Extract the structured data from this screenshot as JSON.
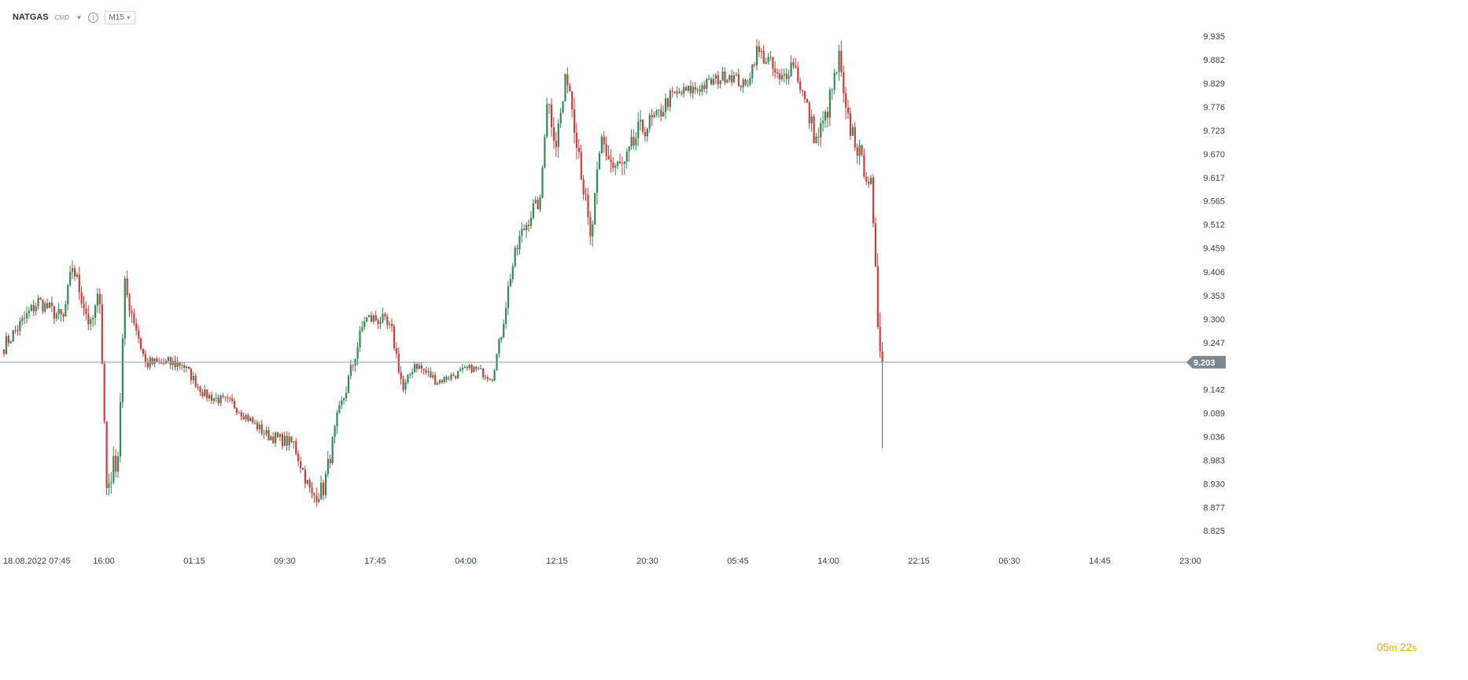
{
  "toolbar": {
    "symbol": "NATGAS",
    "type_tag": "CMD",
    "timeframe": "M15"
  },
  "countdown": {
    "minutes": "05",
    "min_unit": "m",
    "seconds": "22",
    "sec_unit": "s"
  },
  "colors": {
    "up": "#2e8b57",
    "down": "#d43a3a",
    "price_line": "#9aa3ab",
    "grid_text": "#3a3f4a",
    "countdown": "#e8a218"
  },
  "chart_data": {
    "type": "candlestick",
    "title": "",
    "xlabel": "",
    "ylabel": "",
    "ylim": [
      8.825,
      9.96
    ],
    "y_ticks": [
      "9.935",
      "9.882",
      "9.829",
      "9.776",
      "9.723",
      "9.670",
      "9.617",
      "9.565",
      "9.512",
      "9.459",
      "9.406",
      "9.353",
      "9.300",
      "9.247",
      "9.142",
      "9.089",
      "9.036",
      "8.983",
      "8.930",
      "8.877",
      "8.825"
    ],
    "current_price": "9.203",
    "x_ticks": [
      "18.08.2022  07:45",
      "16:00",
      "01:15",
      "09:30",
      "17:45",
      "04:00",
      "12:15",
      "20:30",
      "05:45",
      "14:00",
      "22:15",
      "06:30",
      "14:45",
      "23:00"
    ],
    "legend": "none",
    "grid": false,
    "anchors": [
      [
        0,
        9.24,
        0.018
      ],
      [
        15,
        9.34,
        0.018
      ],
      [
        26,
        9.3,
        0.02
      ],
      [
        30,
        9.42,
        0.022
      ],
      [
        38,
        9.28,
        0.022
      ],
      [
        42,
        9.36,
        0.03
      ],
      [
        45,
        8.92,
        0.03
      ],
      [
        50,
        9.0,
        0.03
      ],
      [
        53,
        9.37,
        0.025
      ],
      [
        57,
        9.3,
        0.022
      ],
      [
        62,
        9.2,
        0.016
      ],
      [
        78,
        9.2,
        0.012
      ],
      [
        88,
        9.13,
        0.012
      ],
      [
        100,
        9.11,
        0.012
      ],
      [
        115,
        9.04,
        0.014
      ],
      [
        127,
        9.02,
        0.016
      ],
      [
        135,
        8.9,
        0.02
      ],
      [
        140,
        8.92,
        0.02
      ],
      [
        146,
        9.07,
        0.02
      ],
      [
        153,
        9.2,
        0.018
      ],
      [
        158,
        9.3,
        0.018
      ],
      [
        165,
        9.3,
        0.018
      ],
      [
        170,
        9.27,
        0.016
      ],
      [
        175,
        9.14,
        0.012
      ],
      [
        180,
        9.2,
        0.012
      ],
      [
        190,
        9.16,
        0.01
      ],
      [
        205,
        9.19,
        0.01
      ],
      [
        214,
        9.17,
        0.01
      ],
      [
        218,
        9.27,
        0.018
      ],
      [
        222,
        9.4,
        0.02
      ],
      [
        226,
        9.48,
        0.02
      ],
      [
        232,
        9.55,
        0.015
      ],
      [
        235,
        9.56,
        0.015
      ],
      [
        238,
        9.8,
        0.03
      ],
      [
        242,
        9.7,
        0.03
      ],
      [
        247,
        9.85,
        0.03
      ],
      [
        252,
        9.68,
        0.03
      ],
      [
        257,
        9.47,
        0.03
      ],
      [
        262,
        9.7,
        0.03
      ],
      [
        267,
        9.64,
        0.03
      ],
      [
        272,
        9.64,
        0.03
      ],
      [
        278,
        9.72,
        0.025
      ],
      [
        286,
        9.75,
        0.02
      ],
      [
        292,
        9.8,
        0.015
      ],
      [
        305,
        9.82,
        0.015
      ],
      [
        318,
        9.85,
        0.015
      ],
      [
        325,
        9.82,
        0.015
      ],
      [
        330,
        9.9,
        0.02
      ],
      [
        335,
        9.88,
        0.02
      ],
      [
        340,
        9.83,
        0.02
      ],
      [
        346,
        9.88,
        0.02
      ],
      [
        352,
        9.77,
        0.025
      ],
      [
        356,
        9.7,
        0.025
      ],
      [
        360,
        9.75,
        0.025
      ],
      [
        366,
        9.88,
        0.03
      ],
      [
        369,
        9.75,
        0.03
      ],
      [
        372,
        9.72,
        0.025
      ],
      [
        376,
        9.65,
        0.02
      ],
      [
        380,
        9.6,
        0.02
      ],
      [
        383,
        9.3,
        0.04
      ],
      [
        385,
        9.203,
        0.04
      ]
    ]
  }
}
